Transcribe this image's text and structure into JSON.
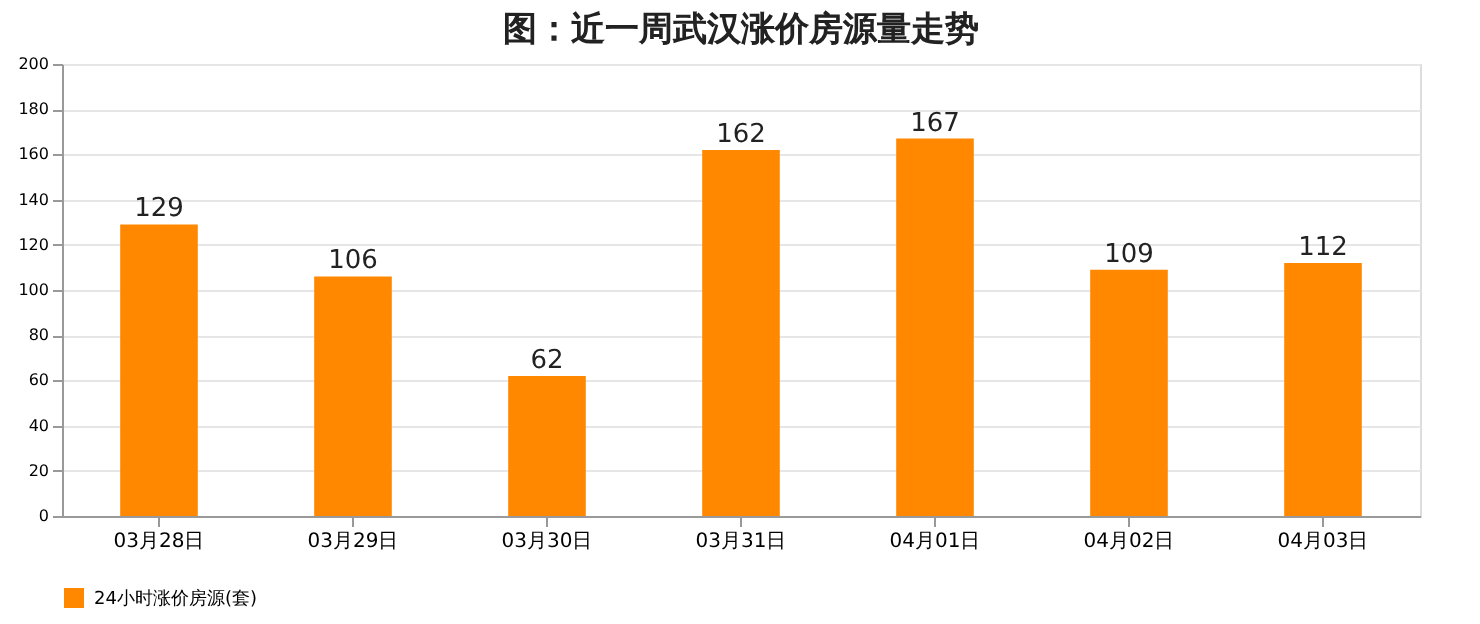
{
  "chart_data": {
    "type": "bar",
    "title": "图：近一周武汉涨价房源量走势",
    "categories": [
      "03月28日",
      "03月29日",
      "03月30日",
      "03月31日",
      "04月01日",
      "04月02日",
      "04月03日"
    ],
    "series": [
      {
        "name": "24小时涨价房源(套)",
        "color": "#ff8800",
        "values": [
          129,
          106,
          62,
          162,
          167,
          109,
          112
        ]
      }
    ],
    "ylim": [
      0,
      200
    ],
    "yticks": [
      0,
      20,
      40,
      60,
      80,
      100,
      120,
      140,
      160,
      180,
      200
    ],
    "grid": "y",
    "legend": "bottom",
    "data_labels": true
  }
}
